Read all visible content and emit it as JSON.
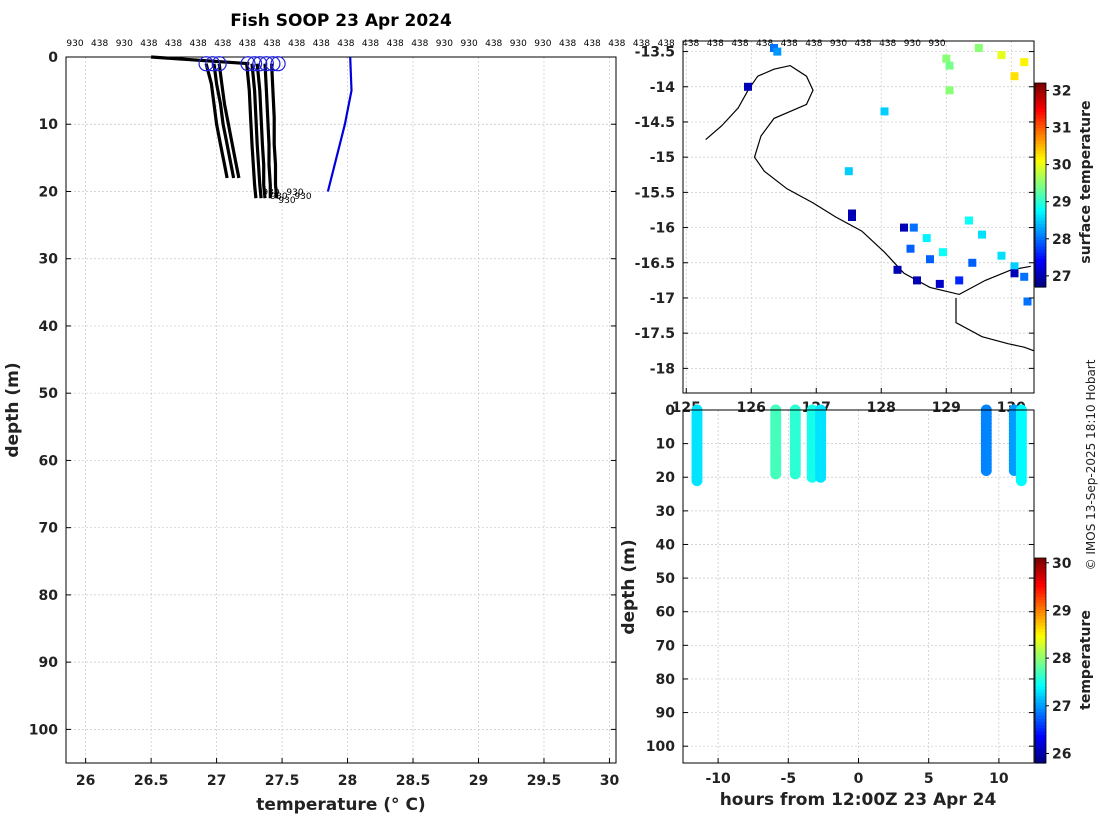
{
  "title": "Fish SOOP 23 Apr 2024",
  "credit": "© IMOS 13-Sep-2025 18:10 Hobart",
  "top_labels": [
    "930",
    "438",
    "930",
    "438",
    "438",
    "438",
    "438",
    "438",
    "438",
    "438",
    "438",
    "438",
    "438",
    "438",
    "438",
    "930",
    "930",
    "438",
    "930",
    "930",
    "438",
    "438",
    "438",
    "438",
    "438",
    "438",
    "438",
    "438",
    "438",
    "438",
    "438",
    "930",
    "438",
    "438",
    "930",
    "930"
  ],
  "chart_data": [
    {
      "type": "line",
      "name": "profile",
      "title": "Fish SOOP 23 Apr 2024",
      "xlabel": "temperature (° C)",
      "ylabel": "depth (m)",
      "xlim": [
        25.85,
        30.05
      ],
      "ylim": [
        105,
        0
      ],
      "xticks": [
        26,
        26.5,
        27,
        27.5,
        28,
        28.5,
        29,
        29.5,
        30
      ],
      "yticks": [
        0,
        10,
        20,
        30,
        40,
        50,
        60,
        70,
        80,
        90,
        100
      ],
      "grid": true,
      "series": [
        {
          "color": "#000000",
          "kind": "profile",
          "x": [
            26.5,
            27.25
          ],
          "y": [
            0,
            1
          ]
        },
        {
          "color": "#000000",
          "kind": "profile",
          "x": [
            26.92,
            26.96,
            26.98,
            27.0,
            27.03,
            27.06,
            27.08
          ],
          "y": [
            1,
            4,
            7,
            10,
            13,
            16,
            18
          ]
        },
        {
          "color": "#000000",
          "kind": "profile",
          "x": [
            26.98,
            27.0,
            27.03,
            27.05,
            27.08,
            27.11,
            27.13
          ],
          "y": [
            1,
            4,
            7,
            10,
            13,
            16,
            18
          ]
        },
        {
          "color": "#000000",
          "kind": "profile",
          "x": [
            27.02,
            27.04,
            27.06,
            27.09,
            27.12,
            27.15,
            27.17
          ],
          "y": [
            1,
            4,
            7,
            10,
            13,
            16,
            18
          ]
        },
        {
          "color": "#000000",
          "kind": "profile",
          "x": [
            27.23,
            27.25,
            27.26,
            27.27,
            27.28,
            27.29,
            27.3
          ],
          "y": [
            1,
            5,
            9,
            13,
            16,
            19,
            21
          ]
        },
        {
          "color": "#000000",
          "kind": "profile",
          "x": [
            27.27,
            27.29,
            27.3,
            27.31,
            27.32,
            27.33,
            27.34
          ],
          "y": [
            1,
            5,
            9,
            13,
            16,
            19,
            21
          ]
        },
        {
          "color": "#000000",
          "kind": "profile",
          "x": [
            27.31,
            27.33,
            27.34,
            27.35,
            27.36,
            27.36,
            27.37
          ],
          "y": [
            1,
            5,
            9,
            13,
            16,
            19,
            21
          ]
        },
        {
          "color": "#000000",
          "kind": "profile",
          "x": [
            27.37,
            27.38,
            27.39,
            27.4,
            27.4,
            27.41,
            27.41
          ],
          "y": [
            1,
            5,
            9,
            13,
            16,
            19,
            21
          ]
        },
        {
          "color": "#000000",
          "kind": "profile",
          "x": [
            27.42,
            27.43,
            27.44,
            27.44,
            27.45,
            27.45,
            27.46
          ],
          "y": [
            1,
            5,
            9,
            13,
            16,
            19,
            21
          ]
        },
        {
          "color": "#0000dd",
          "kind": "reference",
          "x": [
            28.02,
            28.03,
            27.98,
            27.85
          ],
          "y": [
            0,
            5,
            10,
            20
          ]
        }
      ],
      "surface_markers": [
        26.92,
        26.97,
        27.02,
        27.24,
        27.29,
        27.33,
        27.38,
        27.43,
        27.47
      ],
      "end_labels": [
        "930",
        "930",
        "930",
        "930",
        "930"
      ]
    },
    {
      "type": "heatmap",
      "name": "surface map",
      "xticks": [
        125,
        126,
        127,
        128,
        129,
        130
      ],
      "yticks": [
        -13.5,
        -14,
        -14.5,
        -15,
        -15.5,
        -16,
        -16.5,
        -17,
        -17.5,
        -18
      ],
      "xlim": [
        124.95,
        130.35
      ],
      "ylim": [
        -18.35,
        -13.35
      ],
      "colorbar": {
        "label": "surface temperature",
        "min": 26.7,
        "max": 32.2,
        "ticks": [
          27,
          28,
          29,
          30,
          31,
          32
        ]
      },
      "points": [
        {
          "x": 126.35,
          "y": -13.45,
          "v": 28.0
        },
        {
          "x": 126.4,
          "y": -13.5,
          "v": 28.2
        },
        {
          "x": 125.95,
          "y": -14.0,
          "v": 27.0
        },
        {
          "x": 127.55,
          "y": -15.8,
          "v": 27.0
        },
        {
          "x": 127.55,
          "y": -15.85,
          "v": 27.0
        },
        {
          "x": 127.5,
          "y": -15.2,
          "v": 28.5
        },
        {
          "x": 128.05,
          "y": -14.35,
          "v": 28.5
        },
        {
          "x": 129.0,
          "y": -13.6,
          "v": 29.5
        },
        {
          "x": 129.05,
          "y": -13.7,
          "v": 29.4
        },
        {
          "x": 129.05,
          "y": -14.05,
          "v": 29.5
        },
        {
          "x": 129.85,
          "y": -13.55,
          "v": 30.0
        },
        {
          "x": 130.2,
          "y": -13.65,
          "v": 30.2
        },
        {
          "x": 130.05,
          "y": -13.85,
          "v": 30.3
        },
        {
          "x": 129.5,
          "y": -13.45,
          "v": 29.5
        },
        {
          "x": 128.35,
          "y": -16.0,
          "v": 27.0
        },
        {
          "x": 128.5,
          "y": -16.0,
          "v": 28.0
        },
        {
          "x": 128.7,
          "y": -16.15,
          "v": 28.7
        },
        {
          "x": 128.95,
          "y": -16.35,
          "v": 28.8
        },
        {
          "x": 129.35,
          "y": -15.9,
          "v": 28.8
        },
        {
          "x": 129.55,
          "y": -16.1,
          "v": 28.6
        },
        {
          "x": 129.85,
          "y": -16.4,
          "v": 28.6
        },
        {
          "x": 130.05,
          "y": -16.55,
          "v": 28.5
        },
        {
          "x": 130.2,
          "y": -16.7,
          "v": 28.0
        },
        {
          "x": 130.25,
          "y": -17.05,
          "v": 28.0
        },
        {
          "x": 128.25,
          "y": -16.6,
          "v": 27.0
        },
        {
          "x": 128.55,
          "y": -16.75,
          "v": 27.0
        },
        {
          "x": 128.9,
          "y": -16.8,
          "v": 27.1
        },
        {
          "x": 129.2,
          "y": -16.75,
          "v": 27.6
        },
        {
          "x": 128.45,
          "y": -16.3,
          "v": 27.9
        },
        {
          "x": 128.75,
          "y": -16.45,
          "v": 27.9
        },
        {
          "x": 129.4,
          "y": -16.5,
          "v": 27.9
        },
        {
          "x": 130.05,
          "y": -16.65,
          "v": 27.0
        }
      ]
    },
    {
      "type": "scatter",
      "name": "time-depth",
      "xlabel": "hours from 12:00Z 23 Apr 24",
      "ylabel": "depth (m)",
      "xlim": [
        -12.5,
        12.5
      ],
      "ylim": [
        105,
        0
      ],
      "xticks": [
        -10,
        -5,
        0,
        5,
        10
      ],
      "yticks": [
        0,
        10,
        20,
        30,
        40,
        50,
        60,
        70,
        80,
        90,
        100
      ],
      "colorbar": {
        "label": "temperature",
        "min": 25.8,
        "max": 30.1,
        "ticks": [
          26,
          27,
          28,
          29,
          30
        ]
      },
      "columns": [
        {
          "x": -11.5,
          "v": 27.3,
          "depth": 21
        },
        {
          "x": -5.9,
          "v": 27.7,
          "depth": 19
        },
        {
          "x": -4.5,
          "v": 27.6,
          "depth": 19
        },
        {
          "x": -3.3,
          "v": 27.5,
          "depth": 20
        },
        {
          "x": -2.7,
          "v": 27.3,
          "depth": 20
        },
        {
          "x": 9.1,
          "v": 26.9,
          "depth": 18
        },
        {
          "x": 11.1,
          "v": 27.0,
          "depth": 18
        },
        {
          "x": 11.6,
          "v": 27.4,
          "depth": 21
        }
      ]
    }
  ]
}
